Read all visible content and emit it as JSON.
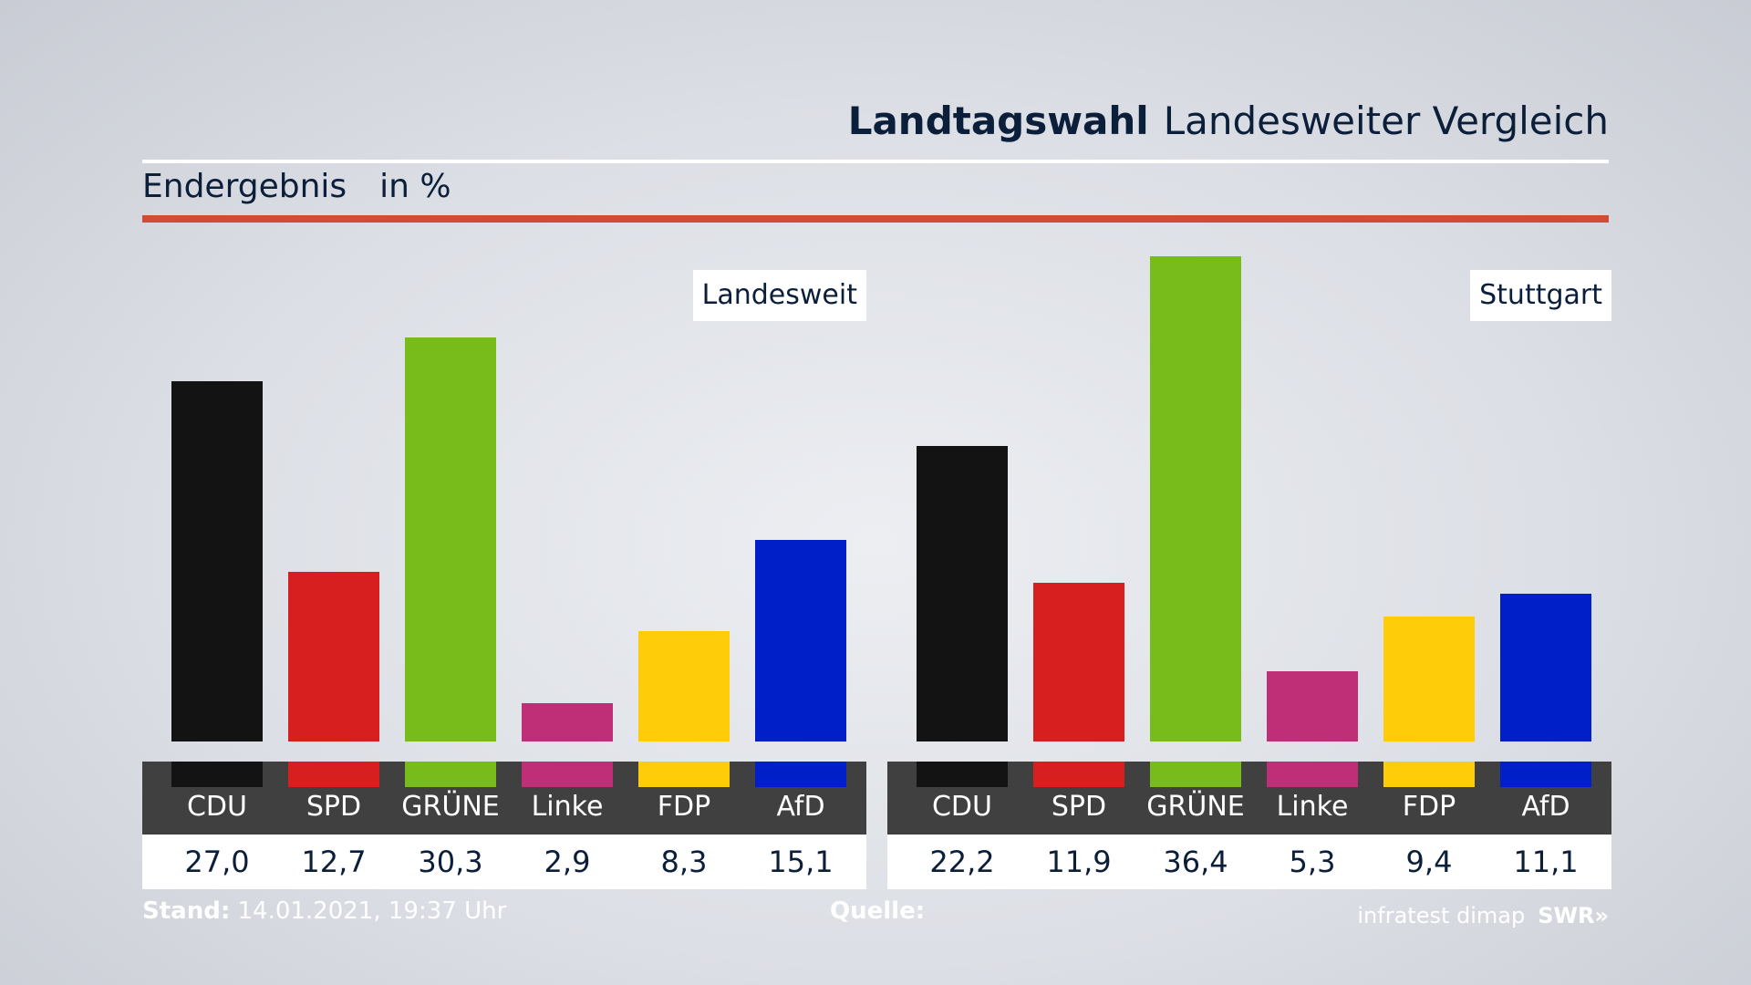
{
  "header": {
    "title_bold": "Landtagswahl",
    "title_rest": "Landesweiter Vergleich",
    "subtitle": "Endergebnis",
    "unit": "in %"
  },
  "chart_data": [
    {
      "type": "bar",
      "title": "Landesweit",
      "categories": [
        "CDU",
        "SPD",
        "GRÜNE",
        "Linke",
        "FDP",
        "AfD"
      ],
      "values": [
        27.0,
        12.7,
        30.3,
        2.9,
        8.3,
        15.1
      ],
      "value_labels": [
        "27,0",
        "12,7",
        "30,3",
        "2,9",
        "8,3",
        "15,1"
      ],
      "colors": [
        "#131313",
        "#d81f1f",
        "#78bc1b",
        "#bf2f78",
        "#ffcc0a",
        "#001fc8"
      ],
      "ylim": [
        0,
        36.4
      ]
    },
    {
      "type": "bar",
      "title": "Stuttgart",
      "categories": [
        "CDU",
        "SPD",
        "GRÜNE",
        "Linke",
        "FDP",
        "AfD"
      ],
      "values": [
        22.2,
        11.9,
        36.4,
        5.3,
        9.4,
        11.1
      ],
      "value_labels": [
        "22,2",
        "11,9",
        "36,4",
        "5,3",
        "9,4",
        "11,1"
      ],
      "colors": [
        "#131313",
        "#d81f1f",
        "#78bc1b",
        "#bf2f78",
        "#ffcc0a",
        "#001fc8"
      ],
      "ylim": [
        0,
        36.4
      ]
    }
  ],
  "footer": {
    "stand_label": "Stand:",
    "stand_value": "14.01.2021, 19:37 Uhr",
    "quelle_label": "Quelle:",
    "source": "infratest dimap",
    "broadcaster": "SWR",
    "broadcaster_icon": "double-chevron-right-icon"
  }
}
